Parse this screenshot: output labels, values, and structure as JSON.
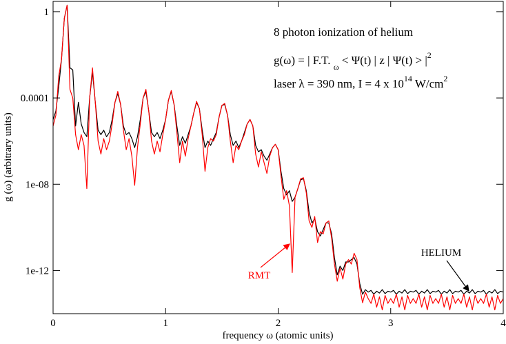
{
  "chart_data": {
    "type": "line",
    "x_label": "frequency ω (atomic units)",
    "y_label": "g (ω) (arbitrary units)",
    "log_y": true,
    "xlim": [
      0,
      4
    ],
    "xticks": [
      0,
      1,
      2,
      3,
      4
    ],
    "ylim": [
      1e-14,
      3
    ],
    "yticks": [
      {
        "value": 1e-12,
        "label": "1e-12"
      },
      {
        "value": 1e-08,
        "label": "1e-08"
      },
      0.0001,
      1
    ],
    "annotations": [
      [
        {
          "text": "8 photon ionization of helium"
        }
      ],
      [
        {
          "text": "g(ω) = | F.T. "
        },
        {
          "sub": "ω"
        },
        {
          "text": " < Ψ(t) | z | Ψ(t) > |"
        },
        {
          "sup": "2"
        }
      ],
      [
        {
          "text": "laser λ = 390 nm, I = 4 x 10"
        },
        {
          "sup": "14"
        },
        {
          "text": " W/cm"
        },
        {
          "sup": "2"
        }
      ]
    ],
    "x": [
      0,
      0.025,
      0.05,
      0.075,
      0.1,
      0.125,
      0.15,
      0.175,
      0.2,
      0.225,
      0.25,
      0.275,
      0.3,
      0.325,
      0.35,
      0.375,
      0.4,
      0.425,
      0.45,
      0.475,
      0.5,
      0.525,
      0.55,
      0.575,
      0.6,
      0.625,
      0.65,
      0.675,
      0.7,
      0.725,
      0.75,
      0.775,
      0.8,
      0.825,
      0.85,
      0.875,
      0.9,
      0.925,
      0.95,
      0.975,
      1,
      1.025,
      1.05,
      1.075,
      1.1,
      1.125,
      1.15,
      1.175,
      1.2,
      1.225,
      1.25,
      1.275,
      1.3,
      1.325,
      1.35,
      1.375,
      1.4,
      1.425,
      1.45,
      1.475,
      1.5,
      1.525,
      1.55,
      1.575,
      1.6,
      1.625,
      1.65,
      1.675,
      1.7,
      1.725,
      1.75,
      1.775,
      1.8,
      1.825,
      1.85,
      1.875,
      1.9,
      1.925,
      1.95,
      1.975,
      2,
      2.025,
      2.05,
      2.075,
      2.1,
      2.125,
      2.15,
      2.175,
      2.2,
      2.225,
      2.25,
      2.275,
      2.3,
      2.325,
      2.35,
      2.375,
      2.4,
      2.425,
      2.45,
      2.475,
      2.5,
      2.525,
      2.55,
      2.575,
      2.6,
      2.625,
      2.65,
      2.675,
      2.7,
      2.725,
      2.75,
      2.775,
      2.8,
      2.825,
      2.85,
      2.875,
      2.9,
      2.925,
      2.95,
      2.975,
      3,
      3.025,
      3.05,
      3.075,
      3.1,
      3.125,
      3.15,
      3.175,
      3.2,
      3.225,
      3.25,
      3.275,
      3.3,
      3.325,
      3.35,
      3.375,
      3.4,
      3.425,
      3.45,
      3.475,
      3.5,
      3.525,
      3.55,
      3.575,
      3.6,
      3.625,
      3.65,
      3.675,
      3.7,
      3.725,
      3.75,
      3.775,
      3.8,
      3.825,
      3.85,
      3.875,
      3.9,
      3.925,
      3.95,
      3.975,
      4
    ],
    "series": [
      {
        "name": "HELIUM",
        "color": "#000000",
        "values": [
          1e-05,
          2.5e-05,
          0.00032,
          0.0063,
          0.5,
          2,
          0.0025,
          0.002,
          5e-06,
          6.3e-05,
          6.3e-06,
          2.5e-06,
          1.6e-06,
          0.0001,
          0.0016,
          6.3e-05,
          3.2e-06,
          2e-06,
          3.2e-06,
          1.6e-06,
          2.5e-06,
          1e-05,
          6.3e-05,
          0.00016,
          5e-05,
          5e-06,
          2e-06,
          2.5e-06,
          1.3e-06,
          5e-07,
          1.6e-06,
          1e-05,
          0.0001,
          0.0002,
          2.5e-05,
          2.5e-06,
          1.6e-06,
          2.5e-06,
          1.3e-06,
          3.2e-06,
          1e-05,
          7.9e-05,
          0.0002,
          5e-05,
          5e-06,
          6.3e-07,
          1.6e-06,
          7.9e-07,
          2e-06,
          5e-06,
          2e-05,
          6.3e-05,
          3.2e-05,
          3.2e-06,
          5e-07,
          1e-06,
          6.3e-07,
          1.3e-06,
          2.5e-06,
          1.3e-05,
          4.5e-05,
          5e-05,
          1.6e-05,
          2e-06,
          6.3e-07,
          1e-06,
          5e-07,
          1e-06,
          2.5e-06,
          6.3e-06,
          1e-05,
          5e-06,
          6.3e-07,
          3.2e-07,
          4e-07,
          2e-07,
          1.3e-07,
          2.5e-07,
          5e-07,
          7.1e-07,
          4e-07,
          4e-08,
          6.3e-09,
          3.2e-09,
          5e-09,
          1.6e-09,
          2.5e-09,
          6.3e-09,
          1.6e-08,
          1.8e-08,
          5e-09,
          5e-10,
          1.6e-10,
          2.5e-10,
          6.3e-11,
          4e-11,
          7.9e-11,
          1.6e-10,
          1.6e-10,
          5e-11,
          4e-12,
          6.3e-13,
          1.6e-12,
          1e-12,
          2.5e-12,
          2.5e-12,
          3.2e-12,
          4e-12,
          2e-12,
          2.5e-13,
          7.9e-14,
          1.3e-13,
          1e-13,
          1.2e-13,
          8e-14,
          1.1e-13,
          9e-14,
          1.3e-13,
          8.5e-14,
          1.1e-13,
          1e-13,
          1.2e-13,
          8e-14,
          1.1e-13,
          9e-14,
          1.3e-13,
          8.5e-14,
          1.1e-13,
          1e-13,
          1.2e-13,
          8e-14,
          1.1e-13,
          9e-14,
          1.3e-13,
          8.5e-14,
          1.1e-13,
          1e-13,
          1.2e-13,
          8e-14,
          1.1e-13,
          9e-14,
          1.3e-13,
          8.5e-14,
          1.1e-13,
          1e-13,
          1.2e-13,
          8e-14,
          1.1e-13,
          9e-14,
          1.3e-13,
          8.5e-14,
          1.1e-13,
          1e-13,
          1.2e-13,
          8e-14,
          1.1e-13,
          9e-14,
          1.3e-13,
          8.5e-14,
          1.1e-13,
          1e-13
        ]
      },
      {
        "name": "RMT",
        "color": "#ff0000",
        "values": [
          5e-06,
          1.6e-05,
          0.001,
          0.0063,
          0.5,
          2,
          0.00025,
          0.0001,
          2e-06,
          4e-07,
          2e-06,
          6.3e-07,
          6.3e-09,
          0.0001,
          0.0025,
          6.3e-05,
          1e-06,
          2.5e-07,
          1.3e-06,
          4e-07,
          1e-06,
          6.3e-06,
          6.3e-05,
          0.0002,
          5e-05,
          3.2e-06,
          4e-07,
          1.3e-06,
          2e-07,
          8.9e-09,
          5e-07,
          6.3e-06,
          0.0001,
          0.00025,
          2.5e-05,
          1e-06,
          2.5e-07,
          1e-06,
          3.2e-07,
          2e-06,
          1e-05,
          7.9e-05,
          0.00022,
          5e-05,
          2.5e-06,
          1e-07,
          1e-06,
          2e-07,
          1.3e-06,
          5e-06,
          2e-05,
          7e-05,
          3.2e-05,
          2e-06,
          4e-08,
          5e-07,
          1.3e-06,
          1e-06,
          2e-06,
          1.3e-05,
          4.5e-05,
          5.6e-05,
          1.6e-05,
          1e-06,
          1e-07,
          6.3e-07,
          4e-07,
          1e-06,
          2e-06,
          6.3e-06,
          1e-05,
          5e-06,
          2.5e-07,
          6.3e-08,
          3.2e-07,
          1e-07,
          3.2e-08,
          2e-07,
          5e-07,
          7.1e-07,
          4e-07,
          2.5e-08,
          2e-09,
          5e-09,
          1e-09,
          8e-13,
          2.5e-09,
          6.3e-09,
          1.8e-08,
          2e-08,
          4e-09,
          2e-10,
          1e-10,
          3.2e-10,
          2e-11,
          6.3e-11,
          5e-11,
          1.6e-10,
          2e-10,
          3.2e-11,
          2e-12,
          3.2e-13,
          1.3e-12,
          4e-13,
          2e-12,
          3.2e-12,
          2e-12,
          6.3e-12,
          3.2e-12,
          1.6e-13,
          3.2e-14,
          1e-13,
          5e-14,
          3e-14,
          8e-14,
          2e-14,
          6e-14,
          1.5e-14,
          7e-14,
          3e-14,
          5e-14,
          3e-14,
          8e-14,
          2e-14,
          6e-14,
          1.5e-14,
          7e-14,
          3e-14,
          5e-14,
          3e-14,
          8e-14,
          2e-14,
          6e-14,
          1.5e-14,
          7e-14,
          3e-14,
          5e-14,
          3e-14,
          8e-14,
          2e-14,
          6e-14,
          1.5e-14,
          7e-14,
          3e-14,
          5e-14,
          3e-14,
          8e-14,
          2e-14,
          6e-14,
          1.5e-14,
          7e-14,
          3e-14,
          5e-14,
          3e-14,
          8e-14,
          2e-14,
          6e-14,
          1.5e-14,
          7e-14,
          3e-14,
          5e-14
        ]
      }
    ]
  }
}
